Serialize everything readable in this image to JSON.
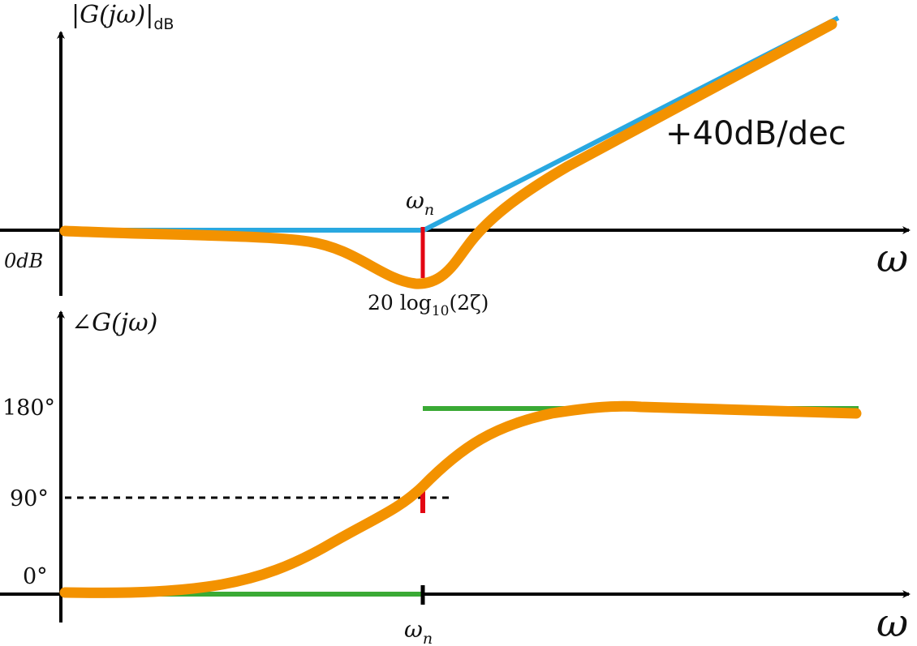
{
  "magnitude_plot": {
    "ylabel_main": "|G(jω)|",
    "ylabel_sub": "dB",
    "zero_label": "0dB",
    "xlabel": "ω",
    "corner_label_main": "ω",
    "corner_label_sub": "n",
    "slope_label": "+40dB/dec",
    "dip_label_main": "20 log",
    "dip_label_sub": "10",
    "dip_label_arg": "(2ζ)"
  },
  "phase_plot": {
    "ylabel": "∠G(jω)",
    "tick_180": "180°",
    "tick_90": "90°",
    "tick_0": "0°",
    "xlabel": "ω",
    "corner_label_main": "ω",
    "corner_label_sub": "n"
  },
  "colors": {
    "exact_response": "#f39200",
    "magnitude_asymptote": "#29a8e0",
    "phase_asymptote": "#3aaa35",
    "marker": "#e30613",
    "axis": "#000000"
  }
}
